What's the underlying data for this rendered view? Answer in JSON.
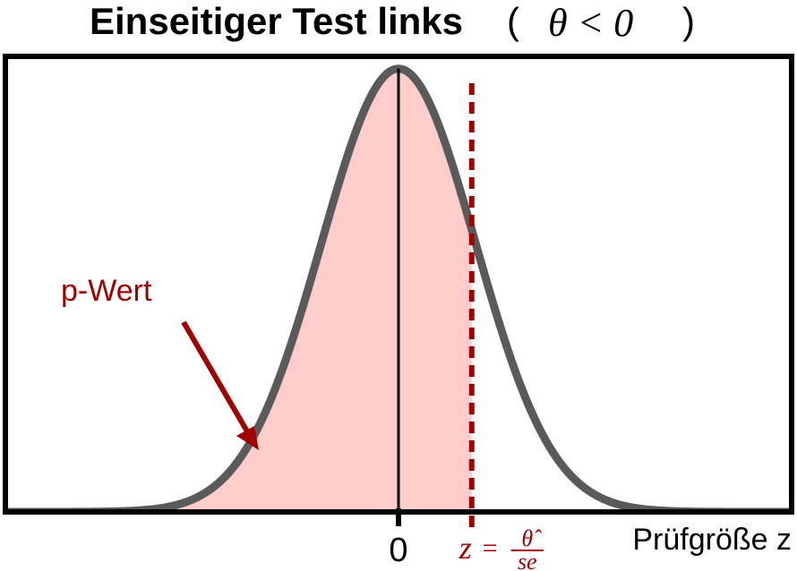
{
  "title": {
    "text": "Einseitiger Test links",
    "math_open": "(",
    "math": "θ < 0",
    "math_close": ")"
  },
  "colors": {
    "curve": "#5a5a5a",
    "fill": "#ffcccc",
    "critical_line": "#a00000",
    "annotation": "#a00000",
    "frame": "#000000"
  },
  "chart_data": {
    "type": "area",
    "distribution": "standard normal density",
    "xlim": [
      -5.1,
      5.1
    ],
    "ylim": [
      0,
      0.41
    ],
    "z_observed": 0.95,
    "shaded_region": "x < z",
    "x_ticks": [
      "0"
    ],
    "xlabel": "Prüfgröße z",
    "annotations": {
      "p_value_label": "p-Wert",
      "z_var": "z",
      "eq": "=",
      "numerator": "θ̂",
      "denominator": "se"
    }
  }
}
